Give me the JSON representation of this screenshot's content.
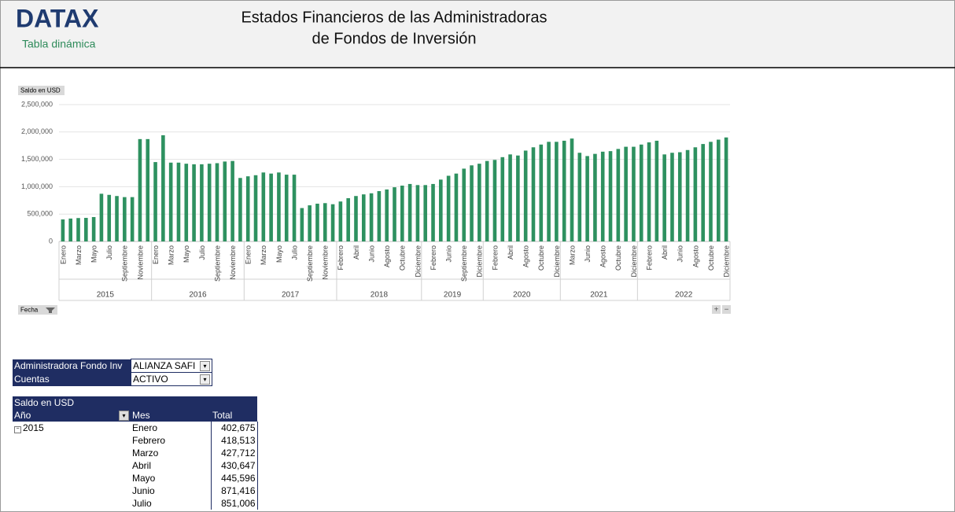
{
  "header": {
    "logo": "DATAX",
    "subtitle": "Tabla dinámica",
    "title_lines": [
      "Estados Financieros de las Administradoras",
      "de Fondos de Inversión"
    ]
  },
  "chart_data": {
    "type": "bar",
    "value_button": "Saldo en USD",
    "axis_button": "Fecha",
    "color": "#2e9160",
    "grid": true,
    "ylim": [
      0,
      2500000
    ],
    "yticks": [
      0,
      {
        "value": 500000,
        "label": "500,000"
      },
      {
        "value": 1000000,
        "label": "1,000,000"
      },
      {
        "value": 1500000,
        "label": "1,500,000"
      },
      {
        "value": 2000000,
        "label": "2,000,000"
      },
      {
        "value": 2500000,
        "label": "2,500,000"
      }
    ],
    "groups": [
      {
        "label": "2015",
        "categories": [
          "Enero",
          null,
          "Marzo",
          null,
          "Mayo",
          null,
          "Julio",
          null,
          "Septiembre",
          null,
          "Noviembre",
          null
        ],
        "values": [
          402675,
          418513,
          427712,
          430647,
          445596,
          871416,
          851006,
          830000,
          810000,
          810000,
          1870000,
          1870000
        ]
      },
      {
        "label": "2016",
        "categories": [
          "Enero",
          null,
          "Marzo",
          null,
          "Mayo",
          null,
          "Julio",
          null,
          "Septiembre",
          null,
          "Noviembre",
          null
        ],
        "values": [
          1450000,
          1940000,
          1440000,
          1440000,
          1420000,
          1410000,
          1410000,
          1420000,
          1430000,
          1460000,
          1470000,
          1160000
        ]
      },
      {
        "label": "2017",
        "categories": [
          "Enero",
          null,
          "Marzo",
          null,
          "Mayo",
          null,
          "Julio",
          null,
          "Septiembre",
          null,
          "Noviembre",
          null
        ],
        "values": [
          1190000,
          1210000,
          1260000,
          1240000,
          1260000,
          1220000,
          1220000,
          610000,
          660000,
          690000,
          700000,
          680000
        ]
      },
      {
        "label": "2018",
        "categories": [
          "Febrero",
          null,
          "Abril",
          null,
          "Junio",
          null,
          "Agosto",
          null,
          "Octubre",
          null,
          "Diciembre"
        ],
        "values": [
          730000,
          790000,
          830000,
          860000,
          880000,
          920000,
          950000,
          990000,
          1020000,
          1050000,
          1030000
        ]
      },
      {
        "label": "2019",
        "categories": [
          null,
          "Febrero",
          null,
          "Junio",
          null,
          "Septiembre",
          null,
          "Diciembre"
        ],
        "values": [
          1030000,
          1050000,
          1130000,
          1200000,
          1240000,
          1330000,
          1390000,
          1420000
        ]
      },
      {
        "label": "2020",
        "categories": [
          null,
          "Febrero",
          null,
          "Abril",
          null,
          "Agosto",
          null,
          "Octubre",
          null,
          "Diciembre"
        ],
        "values": [
          1470000,
          1490000,
          1540000,
          1590000,
          1570000,
          1660000,
          1720000,
          1770000,
          1820000,
          1820000
        ]
      },
      {
        "label": "2021",
        "categories": [
          null,
          "Marzo",
          null,
          "Junio",
          null,
          "Agosto",
          null,
          "Octubre",
          null,
          "Diciembre"
        ],
        "values": [
          1840000,
          1880000,
          1620000,
          1560000,
          1600000,
          1640000,
          1650000,
          1690000,
          1730000,
          1730000
        ]
      },
      {
        "label": "2022",
        "categories": [
          null,
          "Febrero",
          null,
          "Abril",
          null,
          "Junio",
          null,
          "Agosto",
          null,
          "Octubre",
          null,
          "Diciembre"
        ],
        "values": [
          1770000,
          1810000,
          1840000,
          1590000,
          1620000,
          1630000,
          1670000,
          1720000,
          1780000,
          1820000,
          1860000,
          1900000
        ]
      }
    ]
  },
  "filters": [
    {
      "field": "Administradora Fondo Inv",
      "value": "ALIANZA SAFI"
    },
    {
      "field": "Cuentas",
      "value": "ACTIVO"
    }
  ],
  "pivot": {
    "caption": "Saldo en USD",
    "columns": [
      "Año",
      "Mes",
      "Total"
    ],
    "groups": [
      {
        "year": "2015",
        "rows": [
          {
            "month": "Enero",
            "total": "402,675"
          },
          {
            "month": "Febrero",
            "total": "418,513"
          },
          {
            "month": "Marzo",
            "total": "427,712"
          },
          {
            "month": "Abril",
            "total": "430,647"
          },
          {
            "month": "Mayo",
            "total": "445,596"
          },
          {
            "month": "Junio",
            "total": "871,416"
          },
          {
            "month": "Julio",
            "total": "851,006"
          }
        ]
      }
    ]
  }
}
